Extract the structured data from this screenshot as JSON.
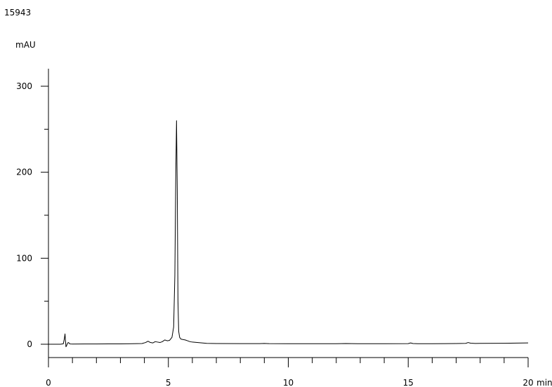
{
  "header": {
    "sample_id": "15943"
  },
  "chart_data": {
    "type": "line",
    "title": "",
    "xlabel": "",
    "ylabel": "",
    "x_unit": "min",
    "y_unit": "mAU",
    "xlim": [
      0,
      20
    ],
    "ylim": [
      -14,
      320
    ],
    "x_ticks": [
      0,
      5,
      10,
      15,
      20
    ],
    "x_tick_labels": [
      "0",
      "5",
      "10",
      "15",
      "20"
    ],
    "x_minor_step": 1,
    "y_ticks": [
      0,
      100,
      200,
      300
    ],
    "y_tick_labels": [
      "0",
      "100",
      "200",
      "300"
    ],
    "y_minor_step": 50,
    "grid": false,
    "series": [
      {
        "color": "#000000",
        "x": [
          0.0,
          0.5,
          0.62,
          0.66,
          0.69,
          0.71,
          0.73,
          0.75,
          0.78,
          0.8,
          0.84,
          0.88,
          0.92,
          1.0,
          1.5,
          2.0,
          2.5,
          3.0,
          3.5,
          3.9,
          4.05,
          4.15,
          4.25,
          4.35,
          4.45,
          4.55,
          4.65,
          4.75,
          4.85,
          4.95,
          5.05,
          5.15,
          5.22,
          5.27,
          5.31,
          5.34,
          5.37,
          5.4,
          5.43,
          5.47,
          5.52,
          5.6,
          5.7,
          5.8,
          5.9,
          6.0,
          6.2,
          6.4,
          6.6,
          7.0,
          8.0,
          8.8,
          9.0,
          9.2,
          10.0,
          11.0,
          12.0,
          12.4,
          13.0,
          14.0,
          15.0,
          15.1,
          15.2,
          15.4,
          16.0,
          17.0,
          17.4,
          17.5,
          17.6,
          17.8,
          18.0,
          19.0,
          19.5,
          20.0
        ],
        "y": [
          0,
          0,
          0.5,
          6,
          12,
          4,
          -3,
          -2,
          0,
          1.5,
          2,
          0.5,
          0.3,
          0.2,
          0.3,
          0.3,
          0.4,
          0.4,
          0.6,
          0.8,
          2,
          3.5,
          2,
          1.5,
          3,
          2.5,
          2,
          3,
          5,
          4,
          4.5,
          8,
          20,
          80,
          200,
          260,
          180,
          50,
          15,
          8,
          6,
          5.5,
          5,
          4,
          3,
          2.5,
          2,
          1.5,
          1,
          0.8,
          0.7,
          0.7,
          0.9,
          0.7,
          0.6,
          0.6,
          0.6,
          0.8,
          0.6,
          0.6,
          0.7,
          1.5,
          0.8,
          0.6,
          0.6,
          0.8,
          1.0,
          2.0,
          1.2,
          0.9,
          1.0,
          1.1,
          1.3,
          1.5
        ]
      }
    ]
  }
}
